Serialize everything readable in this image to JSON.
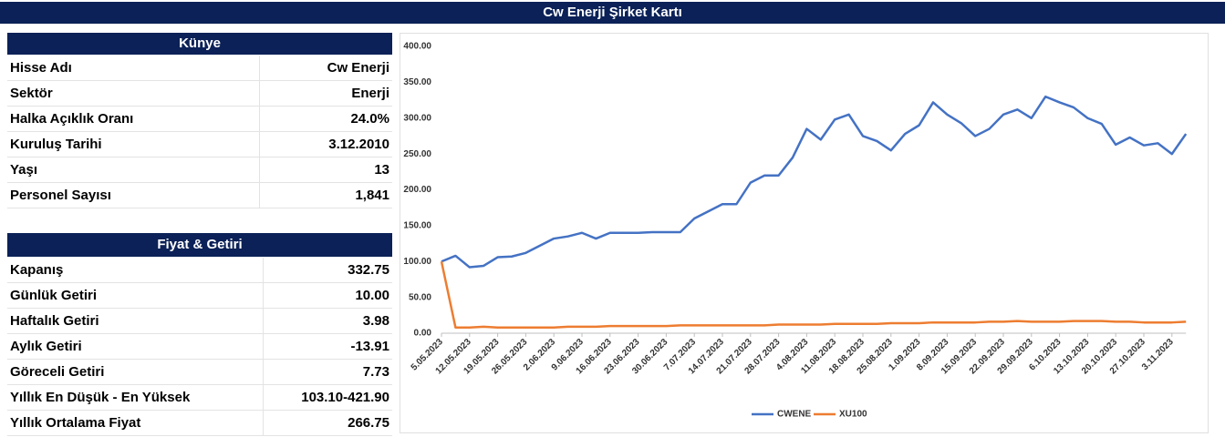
{
  "header": {
    "title": "Cw Enerji Şirket Kartı"
  },
  "kunye": {
    "title": "Künye",
    "rows": [
      [
        "Hisse Adı",
        "Cw Enerji"
      ],
      [
        "Sektör",
        "Enerji"
      ],
      [
        "Halka Açıklık Oranı",
        "24.0%"
      ],
      [
        "Kuruluş Tarihi",
        "3.12.2010"
      ],
      [
        "Yaşı",
        "13"
      ],
      [
        "Personel Sayısı",
        "1,841"
      ]
    ]
  },
  "fiyat": {
    "title": "Fiyat & Getiri",
    "rows": [
      [
        "Kapanış",
        "332.75"
      ],
      [
        "Günlük Getiri",
        "10.00"
      ],
      [
        "Haftalık Getiri",
        "3.98"
      ],
      [
        "Aylık Getiri",
        "-13.91"
      ],
      [
        "Göreceli Getiri",
        "7.73"
      ],
      [
        "Yıllık En Düşük - En Yüksek",
        "103.10-421.90"
      ],
      [
        "Yıllık Ortalama Fiyat",
        "266.75"
      ]
    ]
  },
  "chart_data": {
    "type": "line",
    "categories": [
      "5.05.2023",
      null,
      "12.05.2023",
      null,
      "19.05.2023",
      null,
      "26.05.2023",
      null,
      "2.06.2023",
      null,
      "9.06.2023",
      null,
      "16.06.2023",
      null,
      "23.06.2023",
      null,
      "30.06.2023",
      null,
      "7.07.2023",
      null,
      "14.07.2023",
      null,
      "21.07.2023",
      null,
      "28.07.2023",
      null,
      "4.08.2023",
      null,
      "11.08.2023",
      null,
      "18.08.2023",
      null,
      "25.08.2023",
      null,
      "1.09.2023",
      null,
      "8.09.2023",
      null,
      "15.09.2023",
      null,
      "22.09.2023",
      null,
      "29.09.2023",
      null,
      "6.10.2023",
      null,
      "13.10.2023",
      null,
      "20.10.2023",
      null,
      "27.10.2023",
      null,
      "3.11.2023",
      null
    ],
    "series": [
      {
        "name": "CWENE",
        "color": "#4472c4",
        "values": [
          100,
          108,
          92,
          94,
          106,
          107,
          112,
          122,
          132,
          135,
          140,
          132,
          140,
          140,
          140,
          141,
          141,
          141,
          160,
          170,
          180,
          180,
          210,
          220,
          220,
          245,
          285,
          270,
          298,
          305,
          275,
          268,
          255,
          278,
          290,
          322,
          305,
          293,
          275,
          285,
          305,
          312,
          300,
          330,
          322,
          315,
          300,
          292,
          263,
          273,
          262,
          265,
          250,
          278
        ]
      },
      {
        "name": "XU100",
        "color": "#ed7d31",
        "values": [
          100,
          8,
          8,
          9,
          8,
          8,
          8,
          8,
          8,
          9,
          9,
          9,
          10,
          10,
          10,
          10,
          10,
          11,
          11,
          11,
          11,
          11,
          11,
          11,
          12,
          12,
          12,
          12,
          13,
          13,
          13,
          13,
          14,
          14,
          14,
          15,
          15,
          15,
          15,
          16,
          16,
          17,
          16,
          16,
          16,
          17,
          17,
          17,
          16,
          16,
          15,
          15,
          15,
          16
        ]
      }
    ],
    "ylim": [
      0,
      400
    ],
    "yticks": [
      {
        "value": 0,
        "label": "0.00"
      },
      {
        "value": 50,
        "label": "50.00"
      },
      {
        "value": 100,
        "label": "100.00"
      },
      {
        "value": 150,
        "label": "150.00"
      },
      {
        "value": 200,
        "label": "200.00"
      },
      {
        "value": 250,
        "label": "250.00"
      },
      {
        "value": 300,
        "label": "300.00"
      },
      {
        "value": 350,
        "label": "350.00"
      },
      {
        "value": 400,
        "label": "400.00"
      }
    ],
    "legend": "bottom"
  }
}
